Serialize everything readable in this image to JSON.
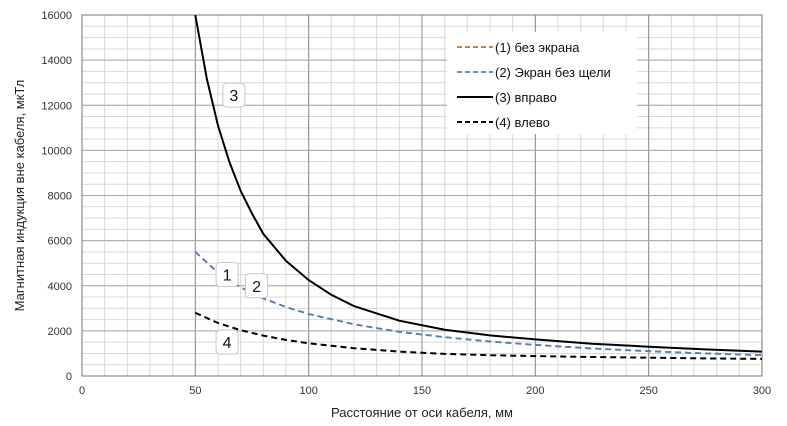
{
  "chart_data": {
    "type": "line",
    "xlabel": "Расстояние от оси кабеля, мм",
    "ylabel": "Магнитная индукция вне кабеля, мкТл",
    "xlim": [
      0,
      300
    ],
    "ylim": [
      0,
      16000
    ],
    "x_ticks": [
      "0",
      "50",
      "100",
      "150",
      "200",
      "250",
      "300"
    ],
    "y_ticks": [
      "0",
      "2000",
      "4000",
      "6000",
      "8000",
      "10000",
      "12000",
      "14000",
      "16000"
    ],
    "grid": true,
    "legend_position": "top-right",
    "series": [
      {
        "name": "(1) без экрана",
        "color": "#c0732e",
        "dash": "dashed",
        "label": "1",
        "points": [
          [
            50,
            5500
          ],
          [
            60,
            4580
          ],
          [
            70,
            3930
          ],
          [
            80,
            3440
          ],
          [
            90,
            3060
          ],
          [
            100,
            2750
          ],
          [
            120,
            2290
          ],
          [
            140,
            1960
          ],
          [
            160,
            1720
          ],
          [
            180,
            1530
          ],
          [
            200,
            1380
          ],
          [
            225,
            1220
          ],
          [
            250,
            1100
          ],
          [
            275,
            1000
          ],
          [
            300,
            920
          ]
        ]
      },
      {
        "name": "(2) Экран без щели",
        "color": "#4f81bd",
        "dash": "dashed",
        "label": "2",
        "points": [
          [
            50,
            5500
          ],
          [
            60,
            4580
          ],
          [
            70,
            3930
          ],
          [
            80,
            3440
          ],
          [
            90,
            3060
          ],
          [
            100,
            2750
          ],
          [
            120,
            2290
          ],
          [
            140,
            1960
          ],
          [
            160,
            1720
          ],
          [
            180,
            1530
          ],
          [
            200,
            1380
          ],
          [
            225,
            1220
          ],
          [
            250,
            1100
          ],
          [
            275,
            1000
          ],
          [
            300,
            920
          ]
        ]
      },
      {
        "name": "(3) вправо",
        "color": "#000000",
        "dash": "solid",
        "label": "3",
        "points": [
          [
            50,
            16000
          ],
          [
            55,
            13200
          ],
          [
            60,
            11100
          ],
          [
            65,
            9500
          ],
          [
            70,
            8200
          ],
          [
            75,
            7200
          ],
          [
            80,
            6300
          ],
          [
            90,
            5100
          ],
          [
            100,
            4250
          ],
          [
            110,
            3600
          ],
          [
            120,
            3100
          ],
          [
            140,
            2450
          ],
          [
            160,
            2050
          ],
          [
            180,
            1800
          ],
          [
            200,
            1620
          ],
          [
            225,
            1430
          ],
          [
            250,
            1300
          ],
          [
            275,
            1180
          ],
          [
            300,
            1080
          ]
        ]
      },
      {
        "name": "(4) влево",
        "color": "#000000",
        "dash": "dashed",
        "label": "4",
        "points": [
          [
            50,
            2800
          ],
          [
            60,
            2350
          ],
          [
            70,
            2030
          ],
          [
            80,
            1790
          ],
          [
            90,
            1600
          ],
          [
            100,
            1450
          ],
          [
            120,
            1230
          ],
          [
            140,
            1080
          ],
          [
            160,
            980
          ],
          [
            180,
            920
          ],
          [
            200,
            880
          ],
          [
            225,
            840
          ],
          [
            250,
            810
          ],
          [
            275,
            780
          ],
          [
            300,
            760
          ]
        ]
      }
    ],
    "callouts": [
      "1",
      "2",
      "3",
      "4"
    ]
  }
}
